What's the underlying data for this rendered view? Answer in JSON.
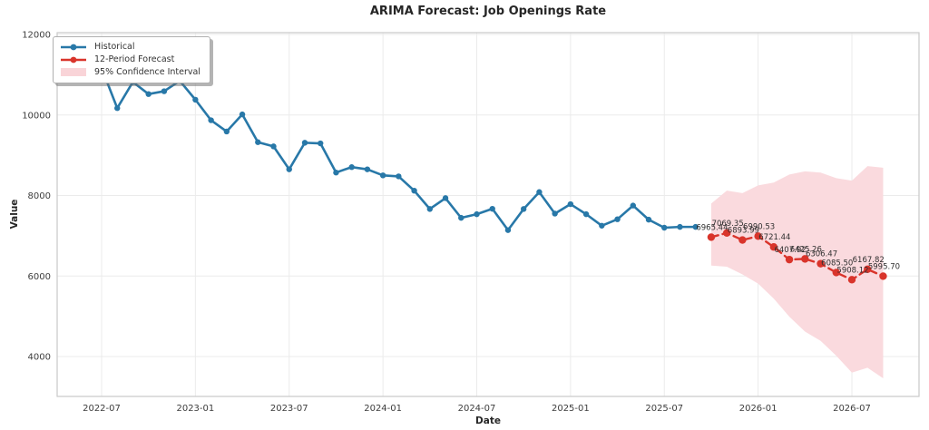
{
  "title": "ARIMA Forecast: Job Openings Rate",
  "colors": {
    "historical": "#2878a8",
    "forecast": "#d9342b",
    "confidence_fill": "#fadade",
    "grid": "#ebebeb",
    "frame": "#c9c9c9",
    "tick_text": "#3d3d3d",
    "annotation_text": "#2f2f2f"
  },
  "legend": {
    "items": [
      {
        "label": "Historical",
        "color": "#2878a8",
        "type": "line-marker"
      },
      {
        "label": "12-Period Forecast",
        "color": "#d9342b",
        "type": "line-marker"
      },
      {
        "label": "95% Confidence Interval",
        "color": "#f9d4d8",
        "type": "patch"
      }
    ]
  },
  "chart_data": {
    "type": "line",
    "title": "ARIMA Forecast: Job Openings Rate",
    "xlabel": "Date",
    "ylabel": "Value",
    "x_ticks": [
      "2022-07",
      "2023-01",
      "2023-07",
      "2024-01",
      "2024-07",
      "2025-01",
      "2025-07",
      "2026-01",
      "2026-07"
    ],
    "y_ticks": [
      4000,
      6000,
      8000,
      10000,
      12000
    ],
    "ylim": [
      3000,
      12050
    ],
    "grid": true,
    "legend_position": "upper-left",
    "series": [
      {
        "name": "Historical",
        "color": "#2878a8",
        "style": "solid",
        "width": 2.6,
        "marker_r": 3.2,
        "point_labels": false,
        "x": [
          "2022-07",
          "2022-08",
          "2022-09",
          "2022-10",
          "2022-11",
          "2022-12",
          "2023-01",
          "2023-02",
          "2023-03",
          "2023-04",
          "2023-05",
          "2023-06",
          "2023-07",
          "2023-08",
          "2023-09",
          "2023-10",
          "2023-11",
          "2023-12",
          "2024-01",
          "2024-02",
          "2024-03",
          "2024-04",
          "2024-05",
          "2024-06",
          "2024-07",
          "2024-08",
          "2024-09",
          "2024-10",
          "2024-11",
          "2024-12",
          "2025-01",
          "2025-02",
          "2025-03",
          "2025-04",
          "2025-05",
          "2025-06",
          "2025-07",
          "2025-08",
          "2025-09"
        ],
        "values": [
          11170,
          10170,
          10820,
          10520,
          10590,
          10850,
          10380,
          9870,
          9590,
          10015,
          9325,
          9220,
          8650,
          9310,
          9295,
          8570,
          8705,
          8650,
          8500,
          8475,
          8120,
          7665,
          7935,
          7445,
          7535,
          7670,
          7140,
          7665,
          8085,
          7550,
          7785,
          7535,
          7250,
          7410,
          7750,
          7400,
          7200,
          7220,
          7220
        ]
      },
      {
        "name": "12-Period Forecast",
        "color": "#d9342b",
        "style": "dashed",
        "dash": "8 5",
        "width": 2.4,
        "marker_r": 4.2,
        "point_labels": true,
        "x": [
          "2025-10",
          "2025-11",
          "2025-12",
          "2026-01",
          "2026-02",
          "2026-03",
          "2026-04",
          "2026-05",
          "2026-06",
          "2026-07",
          "2026-08",
          "2026-09"
        ],
        "values": [
          6965.44,
          7069.35,
          6893.99,
          6990.53,
          6721.44,
          6407.92,
          6425.26,
          6306.47,
          6085.5,
          5908.12,
          6167.82,
          5995.7
        ]
      }
    ],
    "confidence_interval": {
      "name": "95% Confidence Interval",
      "color": "#fadade",
      "x": [
        "2025-10",
        "2025-11",
        "2025-12",
        "2026-01",
        "2026-02",
        "2026-03",
        "2026-04",
        "2026-05",
        "2026-06",
        "2026-07",
        "2026-08",
        "2026-09"
      ],
      "upper": [
        7800,
        8120,
        8060,
        8250,
        8320,
        8520,
        8600,
        8570,
        8430,
        8370,
        8730,
        8690
      ],
      "lower": [
        6260,
        6230,
        6040,
        5810,
        5440,
        4990,
        4620,
        4390,
        4020,
        3600,
        3720,
        3460
      ]
    }
  }
}
